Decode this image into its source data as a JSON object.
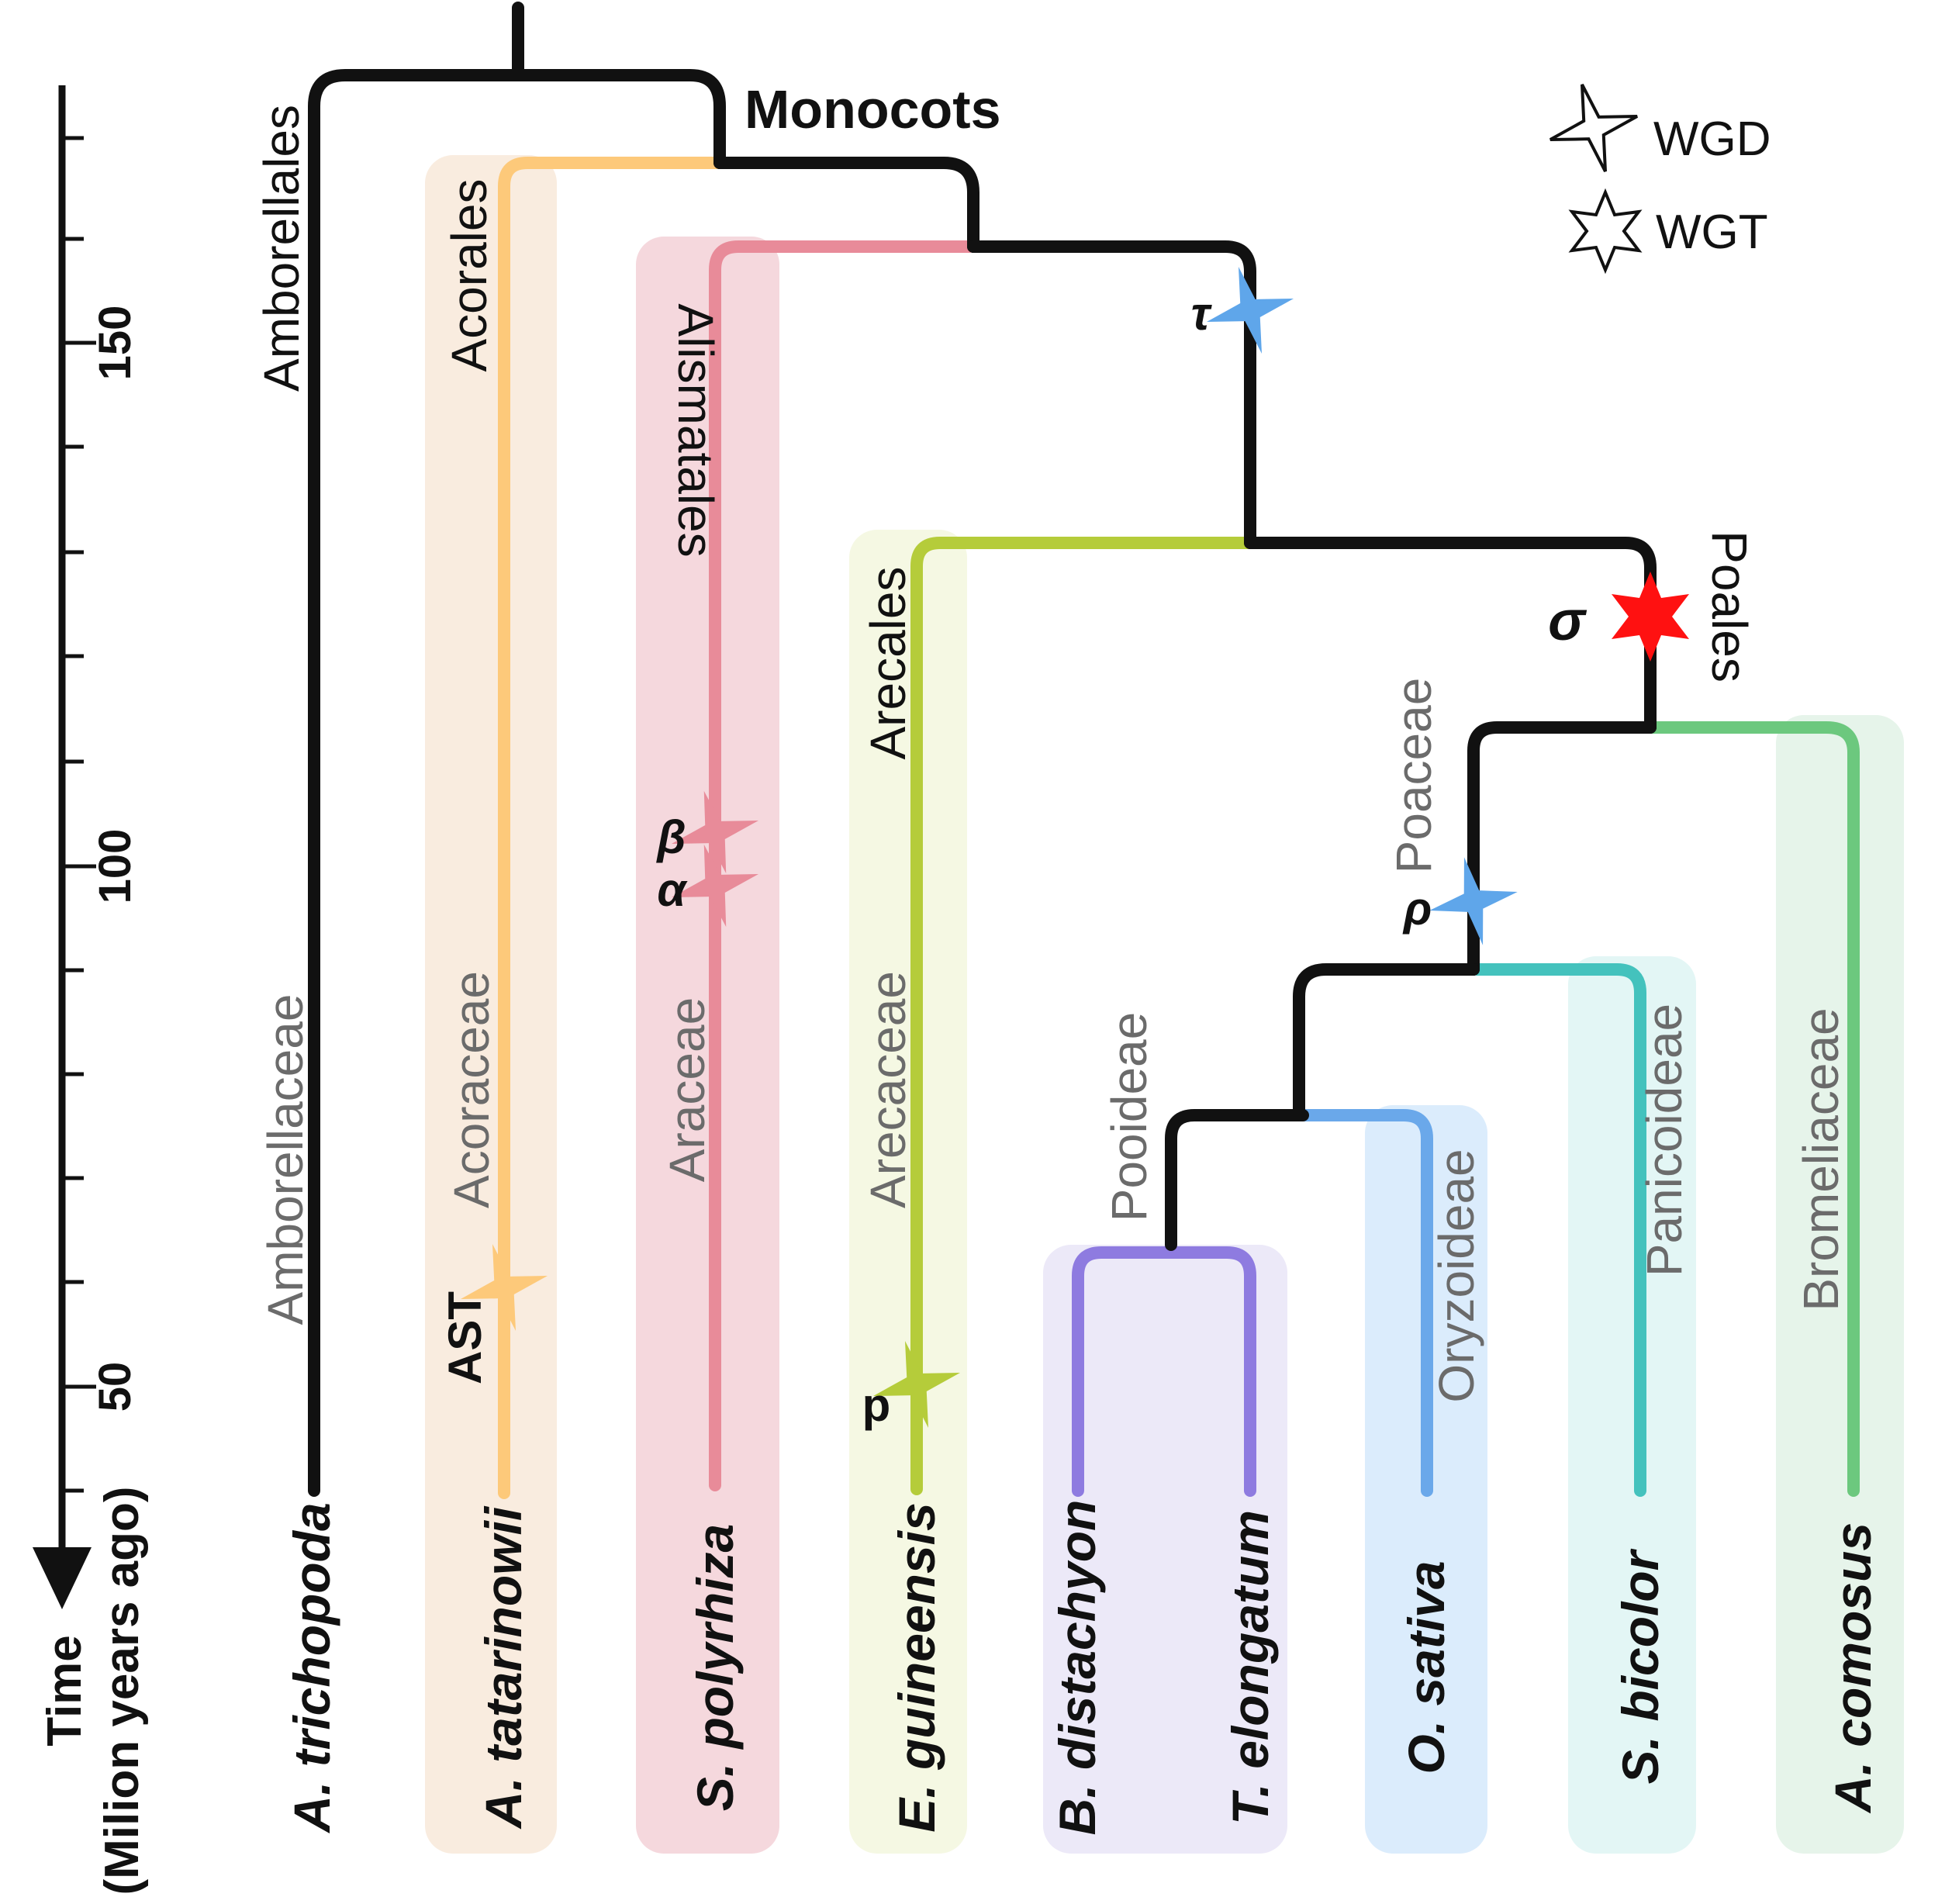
{
  "title": "Monocots",
  "axis": {
    "label_line1": "Time",
    "label_line2": "(Milion years ago)",
    "ticks": [
      "150",
      "100",
      "50"
    ]
  },
  "legend": [
    {
      "label": "WGD",
      "icon": "star-4-point-icon"
    },
    {
      "label": "WGT",
      "icon": "star-6-point-icon"
    }
  ],
  "orders": {
    "amborellales": "Amborellales",
    "acorales": "Acorales",
    "alismatales": "Alismatales",
    "arecales": "Arecales",
    "poales": "Poales"
  },
  "families": {
    "amborellaceae": "Amborellaceae",
    "acoraceae": "Acoraceae",
    "araceae": "Araceae",
    "arecaceae": "Arecaceae",
    "poaceae": "Poaceae",
    "pooideae": "Pooideae",
    "oryzoideae": "Oryzoideae",
    "panicoideae": "Panicoideae",
    "bromeliaceae": "Bromeliaceae"
  },
  "species": {
    "a_trichopoda": "A. trichopoda",
    "a_tatarinowii": "A. tatarinowii",
    "s_polyrhiza": "S. polyrhiza",
    "e_guineensis": "E. guineensis",
    "b_distachyon": "B. distachyon",
    "t_elongatum": "T. elongatum",
    "o_sativa": "O. sativa",
    "s_bicolor": "S. bicolor",
    "a_comosus": "A. comosus"
  },
  "events": {
    "tau": "τ",
    "sigma": "σ",
    "rho": "ρ",
    "beta": "β",
    "alpha": "α",
    "ast": "AST",
    "p": "p"
  },
  "colors": {
    "backbone": "#111111",
    "acorales": "#fdc97a",
    "alismatales": "#e88b99",
    "arecales": "#b5cc3a",
    "pooideae": "#8e7be0",
    "oryzoideae": "#6aa8ea",
    "panicoideae": "#44c2bd",
    "bromeliaceae": "#6cc87e",
    "wgt_star": "#ff1111",
    "wgd_blue": "#5fa6ea"
  }
}
